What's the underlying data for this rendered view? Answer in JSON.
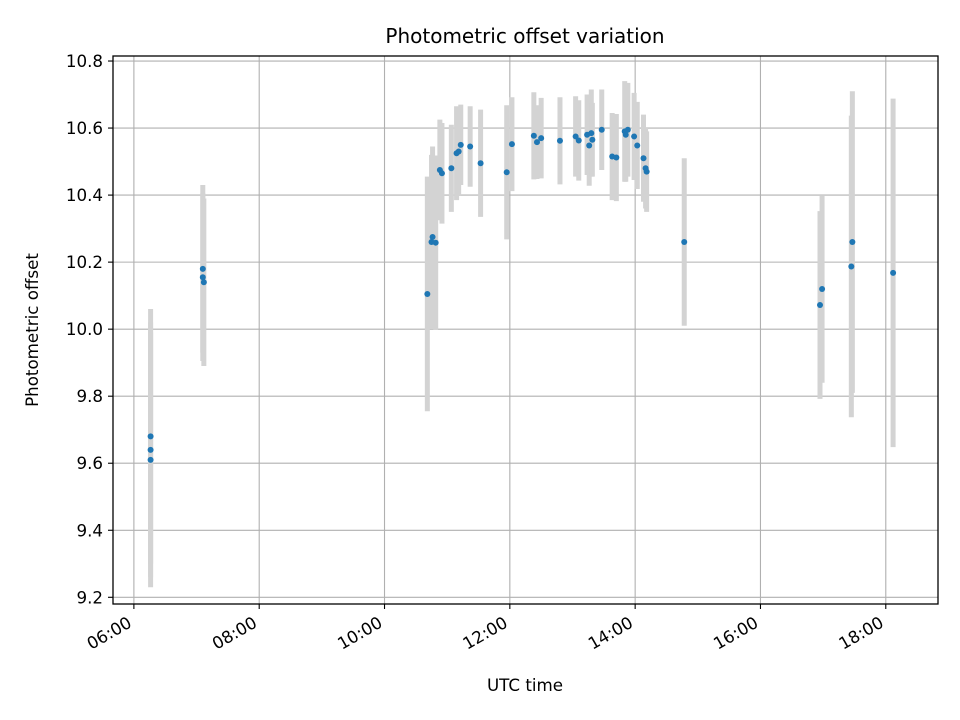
{
  "chart_data": {
    "type": "scatter",
    "title": "Photometric offset variation",
    "xlabel": "UTC time",
    "ylabel": "Photometric offset",
    "x_ticks": [
      "06:00",
      "08:00",
      "10:00",
      "12:00",
      "14:00",
      "16:00",
      "18:00"
    ],
    "y_ticks": [
      "9.2",
      "9.4",
      "9.6",
      "9.8",
      "10.0",
      "10.2",
      "10.4",
      "10.6",
      "10.8"
    ],
    "xlim": [
      "05:40",
      "18:50"
    ],
    "ylim": [
      9.18,
      10.815
    ],
    "grid": true,
    "colors": {
      "points": "#1f77b4",
      "error_bars": "#d3d3d3",
      "grid": "#b0b0b0"
    },
    "series": [
      {
        "x": [
          "06:16",
          "06:16",
          "06:16",
          "07:06",
          "07:06",
          "07:07",
          "10:41",
          "10:45",
          "10:46",
          "10:49",
          "10:53",
          "10:55",
          "11:04",
          "11:09",
          "11:11",
          "11:13",
          "11:22",
          "11:32",
          "11:57",
          "12:02",
          "12:23",
          "12:26",
          "12:30",
          "12:48",
          "13:03",
          "13:06",
          "13:14",
          "13:16",
          "13:18",
          "13:19",
          "13:28",
          "13:38",
          "13:42",
          "13:50",
          "13:51",
          "13:53",
          "13:59",
          "14:02",
          "14:08",
          "14:10",
          "14:11",
          "14:47",
          "16:57",
          "16:59",
          "17:27",
          "17:28",
          "18:07"
        ],
        "y": [
          9.68,
          9.64,
          9.61,
          10.18,
          10.155,
          10.14,
          10.105,
          10.26,
          10.275,
          10.258,
          10.475,
          10.465,
          10.48,
          10.525,
          10.53,
          10.55,
          10.545,
          10.495,
          10.468,
          10.552,
          10.577,
          10.558,
          10.57,
          10.562,
          10.575,
          10.563,
          10.58,
          10.548,
          10.585,
          10.565,
          10.595,
          10.515,
          10.512,
          10.59,
          10.58,
          10.595,
          10.575,
          10.548,
          10.51,
          10.48,
          10.47,
          10.26,
          10.072,
          10.12,
          10.187,
          10.26,
          10.168
        ],
        "err": [
          0.38,
          0.38,
          0.38,
          0.25,
          0.25,
          0.25,
          0.35,
          0.26,
          0.27,
          0.26,
          0.15,
          0.15,
          0.13,
          0.14,
          0.13,
          0.12,
          0.12,
          0.16,
          0.2,
          0.14,
          0.13,
          0.11,
          0.12,
          0.13,
          0.12,
          0.12,
          0.12,
          0.12,
          0.13,
          0.11,
          0.12,
          0.13,
          0.13,
          0.15,
          0.14,
          0.14,
          0.13,
          0.13,
          0.13,
          0.12,
          0.12,
          0.25,
          0.28,
          0.28,
          0.45,
          0.45,
          0.52
        ]
      }
    ]
  }
}
